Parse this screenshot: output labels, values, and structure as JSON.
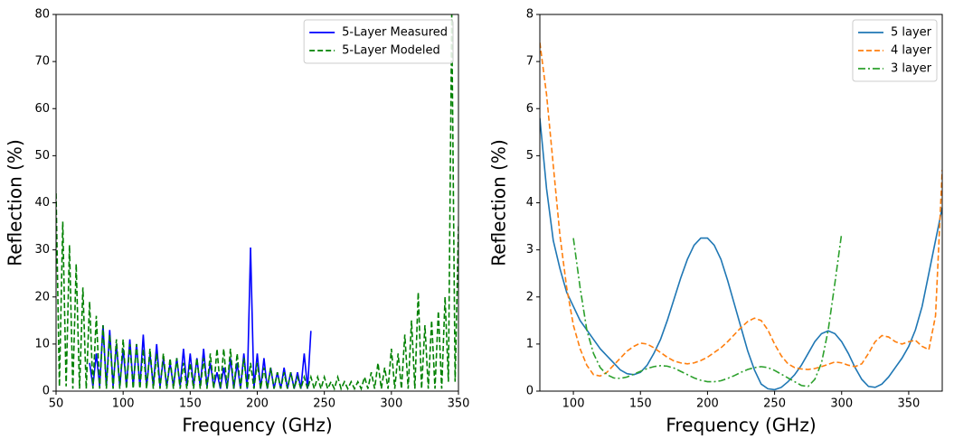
{
  "chart_data": [
    {
      "type": "line",
      "xlabel": "Frequency (GHz)",
      "ylabel": "Reflection (%)",
      "xlim": [
        50,
        350
      ],
      "xticks": [
        50,
        100,
        150,
        200,
        250,
        300,
        350
      ],
      "ylim": [
        0,
        80
      ],
      "yticks": [
        0,
        10,
        20,
        30,
        40,
        50,
        60,
        70,
        80
      ],
      "legend": "upper right",
      "series": [
        {
          "name": "5-Layer Measured",
          "color": "#0000ff",
          "linestyle": "solid",
          "x": [
            75,
            77.5,
            80,
            82.5,
            85,
            87.5,
            90,
            92.5,
            95,
            97.5,
            100,
            102.5,
            105,
            107.5,
            110,
            112.5,
            115,
            117.5,
            120,
            122.5,
            125,
            127.5,
            130,
            132.5,
            135,
            137.5,
            140,
            142.5,
            145,
            147.5,
            150,
            152.5,
            155,
            157.5,
            160,
            162.5,
            165,
            167.5,
            170,
            172.5,
            175,
            177.5,
            180,
            182.5,
            185,
            187.5,
            190,
            192.5,
            195,
            197.5,
            200,
            202.5,
            205,
            207.5,
            210,
            212.5,
            215,
            217.5,
            220,
            222.5,
            225,
            227.5,
            230,
            232.5,
            235,
            237.5,
            240
          ],
          "values": [
            6,
            1,
            8,
            1,
            14,
            1,
            13,
            1,
            10,
            1,
            9,
            1,
            11,
            1,
            10,
            1,
            12,
            1,
            8,
            1,
            10,
            1,
            7,
            1,
            6,
            1,
            7,
            1,
            9,
            1,
            8,
            1,
            7,
            1,
            9,
            1,
            6,
            1,
            4,
            0.5,
            5,
            0.5,
            7,
            0.5,
            6,
            0.5,
            8,
            0.5,
            30.5,
            0.5,
            8,
            0.5,
            7,
            0.5,
            5,
            0.5,
            4,
            0.5,
            5,
            0.5,
            4,
            0.5,
            4,
            0.5,
            8,
            0.5,
            12.8
          ]
        },
        {
          "name": "5-Layer Modeled",
          "color": "#008000",
          "linestyle": "dashed",
          "x": [
            50,
            52.5,
            55,
            57.5,
            60,
            62.5,
            65,
            67.5,
            70,
            72.5,
            75,
            77.5,
            80,
            82.5,
            85,
            87.5,
            90,
            92.5,
            95,
            97.5,
            100,
            102.5,
            105,
            107.5,
            110,
            112.5,
            115,
            117.5,
            120,
            122.5,
            125,
            127.5,
            130,
            132.5,
            135,
            137.5,
            140,
            142.5,
            145,
            147.5,
            150,
            152.5,
            155,
            157.5,
            160,
            162.5,
            165,
            167.5,
            170,
            172.5,
            175,
            177.5,
            180,
            182.5,
            185,
            187.5,
            190,
            192.5,
            195,
            197.5,
            200,
            202.5,
            205,
            207.5,
            210,
            212.5,
            215,
            217.5,
            220,
            222.5,
            225,
            227.5,
            230,
            232.5,
            235,
            237.5,
            240,
            242.5,
            245,
            247.5,
            250,
            252.5,
            255,
            257.5,
            260,
            262.5,
            265,
            267.5,
            270,
            272.5,
            275,
            277.5,
            280,
            282.5,
            285,
            287.5,
            290,
            292.5,
            295,
            297.5,
            300,
            302.5,
            305,
            307.5,
            310,
            312.5,
            315,
            317.5,
            320,
            322.5,
            325,
            327.5,
            330,
            332.5,
            335,
            337.5,
            340,
            342.5,
            345,
            347.5,
            350
          ],
          "values": [
            42,
            1,
            36,
            1,
            31,
            0.5,
            27,
            0.5,
            22,
            0.5,
            19,
            0.5,
            16,
            0.5,
            14,
            0.5,
            12,
            0.5,
            11,
            0.5,
            11,
            0.5,
            10,
            0.5,
            10,
            0.5,
            9,
            0.5,
            9,
            0.5,
            8,
            0.5,
            8,
            0.5,
            7,
            0.5,
            7,
            0.5,
            6,
            0.5,
            6,
            0.5,
            7,
            0.5,
            7,
            0.5,
            8,
            0.5,
            9,
            0.5,
            9,
            0.5,
            9,
            0.5,
            8,
            0.5,
            7,
            0.5,
            6,
            0.5,
            6,
            0.5,
            5,
            0.5,
            5,
            0.5,
            4,
            0.5,
            4,
            0.5,
            4,
            0.5,
            3,
            0.5,
            3,
            0.5,
            3,
            0.5,
            3,
            0.5,
            3,
            0.5,
            2,
            0.5,
            3,
            0.5,
            2,
            0.5,
            2,
            0.5,
            2,
            0.5,
            3,
            0.5,
            4,
            0.5,
            6,
            0.5,
            5,
            0.5,
            9,
            0.5,
            8,
            0.5,
            12,
            0.5,
            15,
            0.5,
            21,
            0.5,
            14,
            0.5,
            15,
            0.5,
            17,
            0.5,
            20,
            2,
            80,
            2,
            35
          ]
        }
      ]
    },
    {
      "type": "line",
      "xlabel": "Frequency (GHz)",
      "ylabel": "Reflection (%)",
      "xlim": [
        75,
        375
      ],
      "xticks": [
        100,
        150,
        200,
        250,
        300,
        350
      ],
      "ylim": [
        0,
        8
      ],
      "yticks": [
        0,
        1,
        2,
        3,
        4,
        5,
        6,
        7,
        8
      ],
      "legend": "upper right",
      "series": [
        {
          "name": "5 layer",
          "color": "#1f77b4",
          "linestyle": "solid",
          "x": [
            75,
            80,
            85,
            90,
            95,
            100,
            105,
            110,
            115,
            120,
            125,
            130,
            135,
            140,
            145,
            150,
            155,
            160,
            165,
            170,
            175,
            180,
            185,
            190,
            195,
            200,
            205,
            210,
            215,
            220,
            225,
            230,
            235,
            240,
            245,
            250,
            255,
            260,
            265,
            270,
            275,
            280,
            285,
            290,
            295,
            300,
            305,
            310,
            315,
            320,
            325,
            330,
            335,
            340,
            345,
            350,
            355,
            360,
            365,
            370,
            375
          ],
          "values": [
            5.8,
            4.3,
            3.2,
            2.6,
            2.1,
            1.8,
            1.5,
            1.3,
            1.1,
            0.9,
            0.75,
            0.6,
            0.45,
            0.37,
            0.35,
            0.4,
            0.55,
            0.8,
            1.1,
            1.5,
            1.95,
            2.4,
            2.8,
            3.1,
            3.25,
            3.25,
            3.1,
            2.8,
            2.35,
            1.85,
            1.35,
            0.85,
            0.45,
            0.15,
            0.05,
            0.03,
            0.08,
            0.2,
            0.35,
            0.55,
            0.8,
            1.05,
            1.22,
            1.28,
            1.22,
            1.05,
            0.8,
            0.5,
            0.25,
            0.1,
            0.08,
            0.15,
            0.3,
            0.5,
            0.7,
            0.95,
            1.3,
            1.8,
            2.5,
            3.2,
            3.9
          ]
        },
        {
          "name": "4 layer",
          "color": "#ff7f0e",
          "linestyle": "dashed",
          "x": [
            75,
            80,
            85,
            90,
            95,
            100,
            105,
            110,
            115,
            120,
            125,
            130,
            135,
            140,
            145,
            150,
            155,
            160,
            165,
            170,
            175,
            180,
            185,
            190,
            195,
            200,
            205,
            210,
            215,
            220,
            225,
            230,
            235,
            240,
            245,
            250,
            255,
            260,
            265,
            270,
            275,
            280,
            285,
            290,
            295,
            300,
            305,
            310,
            315,
            320,
            325,
            330,
            335,
            340,
            345,
            350,
            355,
            360,
            365,
            370,
            375
          ],
          "values": [
            7.4,
            6.3,
            4.8,
            3.3,
            2.2,
            1.4,
            0.9,
            0.55,
            0.35,
            0.32,
            0.4,
            0.55,
            0.7,
            0.85,
            0.95,
            1.02,
            1.0,
            0.92,
            0.82,
            0.72,
            0.64,
            0.6,
            0.58,
            0.6,
            0.65,
            0.72,
            0.82,
            0.92,
            1.05,
            1.2,
            1.35,
            1.48,
            1.55,
            1.5,
            1.3,
            1.0,
            0.75,
            0.58,
            0.5,
            0.47,
            0.46,
            0.48,
            0.52,
            0.57,
            0.62,
            0.6,
            0.55,
            0.52,
            0.58,
            0.8,
            1.05,
            1.18,
            1.15,
            1.05,
            1.0,
            1.05,
            1.08,
            0.95,
            0.88,
            1.6,
            4.7
          ]
        },
        {
          "name": "3 layer",
          "color": "#2ca02c",
          "linestyle": "dashdot",
          "x": [
            100,
            105,
            110,
            115,
            120,
            125,
            130,
            135,
            140,
            145,
            150,
            155,
            160,
            165,
            170,
            175,
            180,
            185,
            190,
            195,
            200,
            205,
            210,
            215,
            220,
            225,
            230,
            235,
            240,
            245,
            250,
            255,
            260,
            265,
            270,
            275,
            280,
            285,
            290,
            295,
            300
          ],
          "values": [
            3.25,
            2.2,
            1.3,
            0.8,
            0.5,
            0.35,
            0.28,
            0.27,
            0.3,
            0.36,
            0.42,
            0.48,
            0.52,
            0.54,
            0.53,
            0.49,
            0.42,
            0.35,
            0.28,
            0.23,
            0.2,
            0.2,
            0.22,
            0.27,
            0.33,
            0.4,
            0.46,
            0.5,
            0.52,
            0.5,
            0.44,
            0.36,
            0.28,
            0.2,
            0.12,
            0.1,
            0.25,
            0.6,
            1.3,
            2.3,
            3.35
          ]
        }
      ]
    }
  ]
}
